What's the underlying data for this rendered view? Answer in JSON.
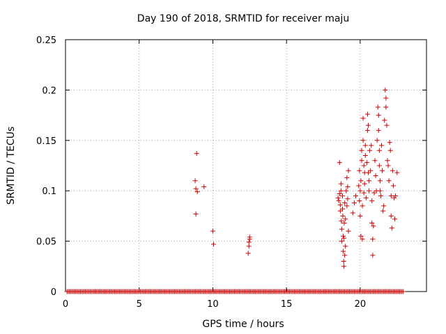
{
  "chart_data": {
    "type": "scatter",
    "title": "Day 190 of 2018, SRMTID for receiver maju",
    "xlabel": "GPS time / hours",
    "ylabel": "SRMTID / TECUs",
    "xlim": [
      0,
      24.5
    ],
    "ylim": [
      0,
      0.25
    ],
    "x_ticks": [
      0,
      5,
      10,
      15,
      20
    ],
    "x_tick_labels": [
      "0",
      "5",
      "10",
      "15",
      "20"
    ],
    "y_ticks": [
      0,
      0.05,
      0.1,
      0.15,
      0.2,
      0.25
    ],
    "y_tick_labels": [
      "0",
      "0.05",
      "0.1",
      "0.15",
      "0.2",
      "0.25"
    ],
    "grid": true,
    "marker": "+",
    "color": "#cc0000",
    "series": [
      {
        "name": "SRMTID",
        "zero_baseline": {
          "x_start": 0.1,
          "x_end": 23.0,
          "x_step": 0.083,
          "y": 0
        },
        "points": [
          [
            8.8,
            0.11
          ],
          [
            8.85,
            0.102
          ],
          [
            8.9,
            0.137
          ],
          [
            8.95,
            0.099
          ],
          [
            8.85,
            0.077
          ],
          [
            9.4,
            0.104
          ],
          [
            10.0,
            0.06
          ],
          [
            10.05,
            0.047
          ],
          [
            12.4,
            0.038
          ],
          [
            12.45,
            0.045
          ],
          [
            12.45,
            0.049
          ],
          [
            12.5,
            0.052
          ],
          [
            12.5,
            0.054
          ],
          [
            18.5,
            0.093
          ],
          [
            18.55,
            0.09
          ],
          [
            18.6,
            0.128
          ],
          [
            18.6,
            0.097
          ],
          [
            18.65,
            0.086
          ],
          [
            18.65,
            0.08
          ],
          [
            18.7,
            0.107
          ],
          [
            18.7,
            0.1
          ],
          [
            18.72,
            0.07
          ],
          [
            18.75,
            0.062
          ],
          [
            18.75,
            0.05
          ],
          [
            18.8,
            0.095
          ],
          [
            18.8,
            0.082
          ],
          [
            18.82,
            0.075
          ],
          [
            18.85,
            0.055
          ],
          [
            18.85,
            0.04
          ],
          [
            18.88,
            0.03
          ],
          [
            18.9,
            0.025
          ],
          [
            18.9,
            0.053
          ],
          [
            18.92,
            0.068
          ],
          [
            18.95,
            0.088
          ],
          [
            18.95,
            0.036
          ],
          [
            19.0,
            0.045
          ],
          [
            19.0,
            0.072
          ],
          [
            19.05,
            0.1
          ],
          [
            19.1,
            0.113
          ],
          [
            19.1,
            0.085
          ],
          [
            19.15,
            0.104
          ],
          [
            19.15,
            0.092
          ],
          [
            19.2,
            0.12
          ],
          [
            19.2,
            0.06
          ],
          [
            19.5,
            0.078
          ],
          [
            19.6,
            0.088
          ],
          [
            19.7,
            0.095
          ],
          [
            19.9,
            0.105
          ],
          [
            19.95,
            0.12
          ],
          [
            19.95,
            0.09
          ],
          [
            20.0,
            0.1
          ],
          [
            20.0,
            0.075
          ],
          [
            20.05,
            0.055
          ],
          [
            20.05,
            0.11
          ],
          [
            20.1,
            0.14
          ],
          [
            20.1,
            0.13
          ],
          [
            20.15,
            0.085
          ],
          [
            20.15,
            0.052
          ],
          [
            20.2,
            0.15
          ],
          [
            20.2,
            0.172
          ],
          [
            20.25,
            0.125
          ],
          [
            20.25,
            0.098
          ],
          [
            20.3,
            0.118
          ],
          [
            20.3,
            0.107
          ],
          [
            20.35,
            0.145
          ],
          [
            20.35,
            0.135
          ],
          [
            20.4,
            0.093
          ],
          [
            20.45,
            0.128
          ],
          [
            20.5,
            0.176
          ],
          [
            20.5,
            0.16
          ],
          [
            20.55,
            0.165
          ],
          [
            20.55,
            0.118
          ],
          [
            20.6,
            0.11
          ],
          [
            20.6,
            0.1
          ],
          [
            20.65,
            0.14
          ],
          [
            20.7,
            0.12
          ],
          [
            20.75,
            0.145
          ],
          [
            20.8,
            0.09
          ],
          [
            20.8,
            0.068
          ],
          [
            20.85,
            0.052
          ],
          [
            20.85,
            0.036
          ],
          [
            20.9,
            0.065
          ],
          [
            20.95,
            0.098
          ],
          [
            21.0,
            0.13
          ],
          [
            21.05,
            0.115
          ],
          [
            21.1,
            0.1
          ],
          [
            21.15,
            0.15
          ],
          [
            21.2,
            0.183
          ],
          [
            21.25,
            0.175
          ],
          [
            21.25,
            0.16
          ],
          [
            21.3,
            0.14
          ],
          [
            21.3,
            0.125
          ],
          [
            21.35,
            0.11
          ],
          [
            21.35,
            0.1
          ],
          [
            21.4,
            0.095
          ],
          [
            21.45,
            0.145
          ],
          [
            21.5,
            0.12
          ],
          [
            21.55,
            0.08
          ],
          [
            21.6,
            0.085
          ],
          [
            21.65,
            0.17
          ],
          [
            21.7,
            0.2
          ],
          [
            21.75,
            0.192
          ],
          [
            21.75,
            0.183
          ],
          [
            21.8,
            0.165
          ],
          [
            21.85,
            0.13
          ],
          [
            21.9,
            0.125
          ],
          [
            21.95,
            0.11
          ],
          [
            22.0,
            0.148
          ],
          [
            22.05,
            0.14
          ],
          [
            22.1,
            0.095
          ],
          [
            22.1,
            0.075
          ],
          [
            22.15,
            0.063
          ],
          [
            22.2,
            0.12
          ],
          [
            22.25,
            0.105
          ],
          [
            22.3,
            0.093
          ],
          [
            22.35,
            0.072
          ],
          [
            22.4,
            0.095
          ],
          [
            22.5,
            0.118
          ]
        ]
      }
    ]
  }
}
